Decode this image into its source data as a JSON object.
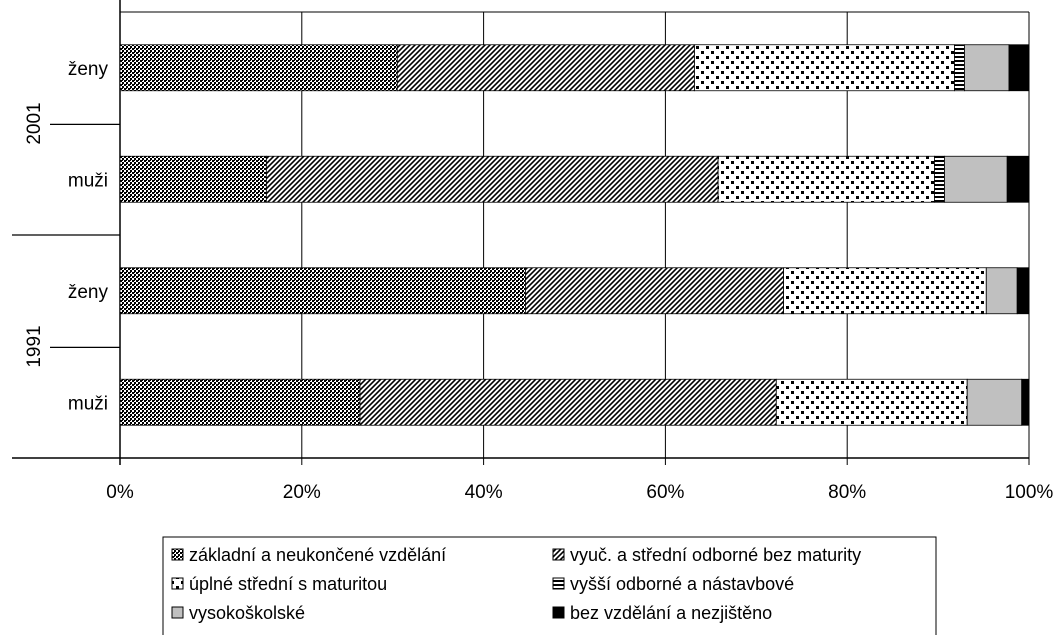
{
  "chart_data": {
    "type": "bar",
    "orientation": "horizontal",
    "stacked": true,
    "percent": true,
    "groups": [
      {
        "label": "2001",
        "categories": [
          "ženy",
          "muži"
        ]
      },
      {
        "label": "1991",
        "categories": [
          "ženy",
          "muži"
        ]
      }
    ],
    "categories": [
      "2001 ženy",
      "2001 muži",
      "1991 ženy",
      "1991 muži"
    ],
    "category_labels": [
      "ženy",
      "muži",
      "ženy",
      "muži"
    ],
    "xlim": [
      0,
      100
    ],
    "x_ticks": [
      "0%",
      "20%",
      "40%",
      "60%",
      "80%",
      "100%"
    ],
    "grid": true,
    "legend_position": "bottom",
    "series": [
      {
        "name": "základní a neukončené vzdělání",
        "pattern": "dense-dots",
        "values": [
          30.5,
          16.1,
          44.6,
          26.4
        ]
      },
      {
        "name": "vyuč. a střední odborné bez maturity",
        "pattern": "diagonal",
        "values": [
          32.7,
          49.7,
          28.4,
          45.8
        ]
      },
      {
        "name": "úplné střední s maturitou",
        "pattern": "sparse-dots",
        "values": [
          28.6,
          23.8,
          22.3,
          21.0
        ]
      },
      {
        "name": "vyšší odborné a nástavbové",
        "pattern": "horizontal-lines",
        "values": [
          1.1,
          1.1,
          0.0,
          0.0
        ]
      },
      {
        "name": "vysokoškolské",
        "pattern": "gray",
        "values": [
          4.9,
          6.9,
          3.4,
          6.0
        ]
      },
      {
        "name": "bez vzdělání a nezjištěno",
        "pattern": "black",
        "values": [
          2.2,
          2.4,
          1.3,
          0.8
        ]
      }
    ]
  }
}
